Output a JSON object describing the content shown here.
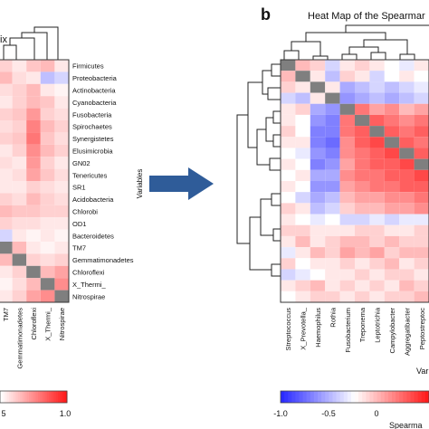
{
  "panel_b_letter": "b",
  "chart_data": [
    {
      "type": "heatmap",
      "title": "ix",
      "ylabel": "",
      "row_labels": [
        "Firmicutes",
        "Proteobacteria",
        "Actinobacteria",
        "Cyanobacteria",
        "Fusobacteria",
        "Spirochaetes",
        "Synergistetes",
        "Elusimicrobia",
        "GN02",
        "Tenericutes",
        "SR1",
        "Acidobacteria",
        "Chlorobi",
        "OD1",
        "Bacteroidetes",
        "TM7",
        "Gemmatimonadetes",
        "Chloroflexi",
        "X_Thermi_",
        "Nitrospirae"
      ],
      "column_labels": [
        "TM7",
        "Gemmatimonadetes",
        "Chloroflexi",
        "X_Thermi_",
        "Nitrospirae"
      ],
      "colorbar_ticks": [
        "5",
        "1.0"
      ],
      "colors": {
        "low": "#2b2bff",
        "mid": "#ffffff",
        "high": "#ff1a1a",
        "diagonal": "#7f7f7f"
      },
      "values": [
        [
          0.2,
          0.1,
          0.25,
          0.3,
          0.1
        ],
        [
          0.3,
          0.15,
          0.1,
          -0.3,
          -0.2
        ],
        [
          0.15,
          0.2,
          0.3,
          0.1,
          0.05
        ],
        [
          0.1,
          0.2,
          0.3,
          0.25,
          0.1
        ],
        [
          0.2,
          0.25,
          0.45,
          0.2,
          0.15
        ],
        [
          0.15,
          0.2,
          0.55,
          0.3,
          0.2
        ],
        [
          0.2,
          0.25,
          0.6,
          0.25,
          0.15
        ],
        [
          0.1,
          0.2,
          0.5,
          0.3,
          0.2
        ],
        [
          0.15,
          0.1,
          0.45,
          0.2,
          0.1
        ],
        [
          0.1,
          0.15,
          0.4,
          0.25,
          0.15
        ],
        [
          0.1,
          0.1,
          0.2,
          0.15,
          0.1
        ],
        [
          0.2,
          0.15,
          0.3,
          0.2,
          0.15
        ],
        [
          0.3,
          0.25,
          0.25,
          0.2,
          0.2
        ],
        [
          0.2,
          0.15,
          0.15,
          0.1,
          0.1
        ],
        [
          -0.2,
          0.1,
          0.05,
          0.1,
          0.05
        ],
        [
          1.0,
          0.3,
          0.1,
          0.05,
          0.1
        ],
        [
          0.3,
          1.0,
          0.2,
          0.15,
          0.2
        ],
        [
          0.1,
          0.2,
          1.0,
          0.3,
          0.4
        ],
        [
          0.05,
          0.15,
          0.3,
          1.0,
          0.5
        ],
        [
          0.1,
          0.2,
          0.4,
          0.5,
          1.0
        ]
      ]
    },
    {
      "type": "heatmap",
      "title": "Heat Map of the Spearmar",
      "ylabel": "Variables",
      "xlabel": "Var",
      "legend_title": "Spearma",
      "column_labels": [
        "Streptococcus",
        "X_Prevotella_",
        "Haemophilus",
        "Rothia",
        "Fusobacterium",
        "Treponema",
        "Leptotrichia",
        "Campylobacter",
        "Aggregatibacter",
        "Peptostreptoc"
      ],
      "colorbar_ticks": [
        "-1.0",
        "-0.5",
        "0"
      ],
      "colors": {
        "low": "#2b2bff",
        "mid": "#ffffff",
        "high": "#ff1a1a",
        "diagonal": "#7f7f7f"
      },
      "values": [
        [
          1.0,
          0.3,
          0.2,
          -0.2,
          0.1,
          0.2,
          0.1,
          0.0,
          -0.1,
          0.1
        ],
        [
          0.3,
          1.0,
          0.1,
          -0.3,
          0.2,
          0.1,
          -0.2,
          0.0,
          0.1,
          0.0
        ],
        [
          0.2,
          0.1,
          1.0,
          0.1,
          -0.4,
          -0.3,
          -0.2,
          -0.3,
          -0.2,
          -0.1
        ],
        [
          -0.2,
          -0.3,
          0.1,
          1.0,
          -0.5,
          -0.4,
          -0.3,
          -0.4,
          -0.3,
          -0.2
        ],
        [
          0.1,
          0.2,
          -0.4,
          -0.5,
          1.0,
          0.6,
          0.4,
          0.5,
          0.3,
          0.4
        ],
        [
          0.1,
          0.0,
          -0.5,
          -0.6,
          0.6,
          1.0,
          0.7,
          0.6,
          0.5,
          0.6
        ],
        [
          0.2,
          0.0,
          -0.6,
          -0.6,
          0.6,
          0.7,
          1.0,
          0.7,
          0.6,
          0.7
        ],
        [
          0.1,
          0.1,
          -0.6,
          -0.7,
          0.5,
          0.7,
          0.8,
          1.0,
          0.7,
          0.6
        ],
        [
          0.0,
          -0.1,
          -0.5,
          -0.6,
          0.5,
          0.6,
          0.7,
          0.8,
          1.0,
          0.7
        ],
        [
          0.1,
          0.0,
          -0.6,
          -0.5,
          0.4,
          0.6,
          0.7,
          0.7,
          0.8,
          1.0
        ],
        [
          0.0,
          0.1,
          -0.4,
          -0.4,
          0.5,
          0.6,
          0.6,
          0.7,
          0.7,
          0.8
        ],
        [
          0.1,
          0.0,
          -0.5,
          -0.5,
          0.4,
          0.5,
          0.6,
          0.6,
          0.7,
          0.7
        ],
        [
          0.0,
          -0.2,
          -0.4,
          -0.3,
          0.3,
          0.4,
          0.4,
          0.5,
          0.5,
          0.6
        ],
        [
          0.2,
          0.1,
          -0.3,
          -0.2,
          0.2,
          0.3,
          0.3,
          0.4,
          0.4,
          0.5
        ],
        [
          0.1,
          0.0,
          -0.1,
          0.0,
          -0.2,
          -0.2,
          -0.1,
          -0.2,
          -0.1,
          -0.1
        ],
        [
          0.2,
          0.2,
          0.1,
          0.1,
          0.1,
          0.2,
          0.2,
          0.1,
          0.1,
          0.2
        ],
        [
          0.1,
          0.3,
          0.1,
          0.2,
          0.3,
          0.3,
          0.2,
          0.3,
          0.2,
          0.2
        ],
        [
          -0.1,
          0.1,
          0.3,
          0.2,
          0.4,
          0.3,
          0.4,
          0.2,
          0.3,
          0.3
        ],
        [
          0.2,
          0.0,
          0.1,
          0.1,
          0.2,
          0.1,
          0.2,
          0.3,
          0.1,
          0.2
        ],
        [
          -0.2,
          -0.1,
          0.0,
          0.1,
          0.1,
          0.2,
          0.1,
          0.2,
          0.2,
          0.1
        ],
        [
          0.1,
          0.2,
          0.3,
          0.1,
          0.2,
          0.1,
          0.2,
          0.1,
          0.3,
          0.2
        ],
        [
          0.0,
          0.1,
          0.2,
          0.2,
          0.1,
          0.2,
          0.1,
          0.2,
          0.2,
          0.3
        ]
      ]
    }
  ]
}
